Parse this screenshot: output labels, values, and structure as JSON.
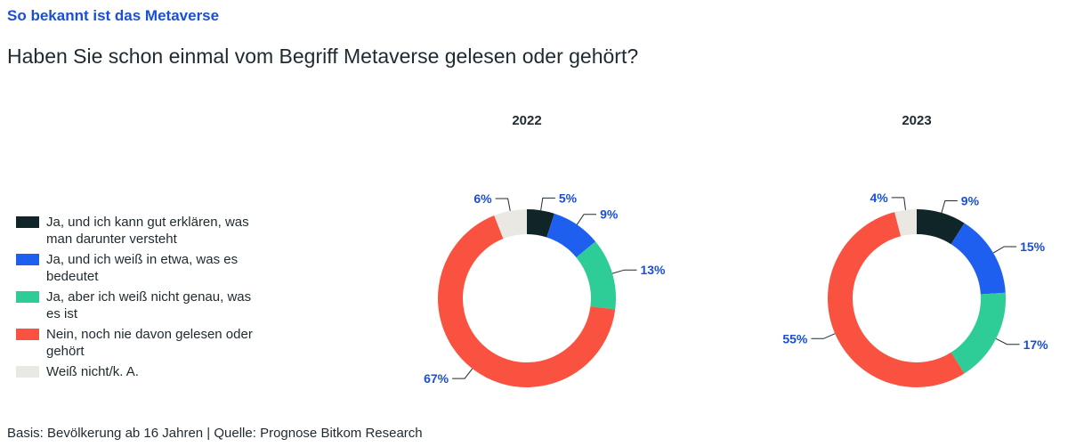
{
  "header": {
    "kicker": "So bekannt ist das Metaverse",
    "title": "Haben Sie schon einmal vom Begriff Metaverse gelesen oder gehört?"
  },
  "legend": [
    {
      "label": "Ja, und ich kann gut erklären, was man darunter versteht",
      "color": "#0f2528"
    },
    {
      "label": "Ja, und ich weiß in etwa, was es bedeutet",
      "color": "#1f5ff0"
    },
    {
      "label": "Ja, aber ich weiß nicht genau, was es ist",
      "color": "#2ecc96"
    },
    {
      "label": "Nein, noch nie davon gelesen oder gehört",
      "color": "#fa5240"
    },
    {
      "label": "Weiß nicht/k. A.",
      "color": "#e9e8e3"
    }
  ],
  "footer": "Basis: Bevölkerung ab 16 Jahren | Quelle: Prognose Bitkom Research",
  "chart_data": [
    {
      "type": "pie",
      "title": "2022",
      "categories": [
        "Ja, und ich kann gut erklären, was man darunter versteht",
        "Ja, und ich weiß in etwa, was es bedeutet",
        "Ja, aber ich weiß nicht genau, was es ist",
        "Nein, noch nie davon gelesen oder gehört",
        "Weiß nicht/k. A."
      ],
      "values": [
        5,
        9,
        13,
        67,
        6
      ],
      "labels": [
        "5%",
        "9%",
        "13%",
        "67%",
        "6%"
      ]
    },
    {
      "type": "pie",
      "title": "2023",
      "categories": [
        "Ja, und ich kann gut erklären, was man darunter versteht",
        "Ja, und ich weiß in etwa, was es bedeutet",
        "Ja, aber ich weiß nicht genau, was es ist",
        "Nein, noch nie davon gelesen oder gehört",
        "Weiß nicht/k. A."
      ],
      "values": [
        9,
        15,
        17,
        55,
        4
      ],
      "labels": [
        "9%",
        "15%",
        "17%",
        "55%",
        "4%"
      ]
    }
  ]
}
